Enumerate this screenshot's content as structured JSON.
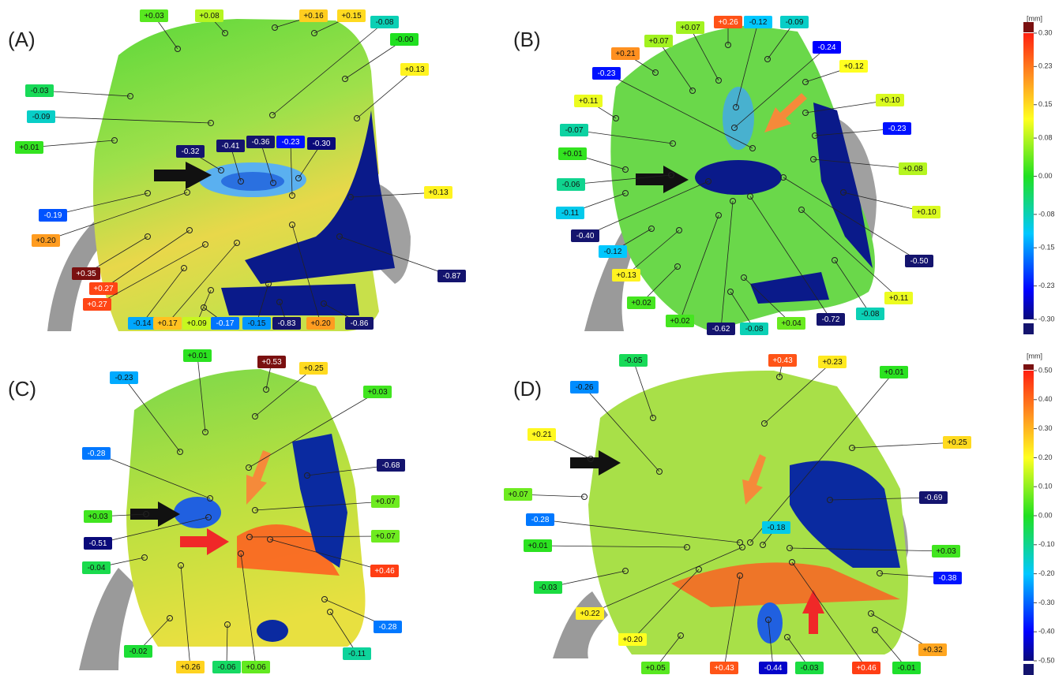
{
  "panels": [
    {
      "label": "(A)",
      "callouts": [
        "+0.03",
        "+0.08",
        "+0.16",
        "+0.15",
        "-0.08",
        "-0.00",
        "+0.13",
        "-0.03",
        "-0.09",
        "+0.01",
        "-0.32",
        "-0.41",
        "-0.36",
        "-0.23",
        "-0.30",
        "+0.13",
        "-0.19",
        "+0.20",
        "+0.35",
        "+0.27",
        "+0.27",
        "-0.14",
        "+0.17",
        "+0.09",
        "-0.17",
        "-0.15",
        "-0.83",
        "+0.20",
        "-0.86",
        "-0.87"
      ]
    },
    {
      "label": "(B)",
      "callouts": [
        "+0.21",
        "+0.07",
        "+0.07",
        "+0.26",
        "-0.12",
        "-0.09",
        "-0.24",
        "+0.12",
        "-0.23",
        "+0.11",
        "+0.10",
        "-0.07",
        "-0.23",
        "+0.01",
        "+0.08",
        "-0.06",
        "-0.11",
        "+0.10",
        "-0.40",
        "-0.12",
        "+0.13",
        "-0.50",
        "+0.02",
        "+0.11",
        "+0.02",
        "-0.62",
        "-0.08",
        "+0.04",
        "-0.72",
        "-0.08"
      ]
    },
    {
      "label": "(C)",
      "callouts": [
        "+0.01",
        "+0.53",
        "+0.25",
        "-0.23",
        "+0.03",
        "-0.28",
        "-0.68",
        "+0.07",
        "+0.03",
        "-0.51",
        "+0.07",
        "-0.04",
        "+0.46",
        "-0.28",
        "-0.02",
        "+0.26",
        "-0.06",
        "+0.06",
        "-0.11"
      ]
    },
    {
      "label": "(D)",
      "callouts": [
        "-0.05",
        "+0.43",
        "+0.23",
        "-0.26",
        "+0.01",
        "+0.21",
        "+0.25",
        "+0.07",
        "-0.69",
        "-0.18",
        "-0.28",
        "+0.01",
        "+0.03",
        "-0.03",
        "-0.38",
        "+0.22",
        "+0.20",
        "+0.32",
        "+0.05",
        "+0.43",
        "-0.44",
        "-0.03",
        "+0.46",
        "-0.01"
      ]
    }
  ],
  "colorbars": [
    {
      "unit": "[mm]",
      "ticks": [
        {
          "value": 0.3,
          "label": "0.30"
        },
        {
          "value": 0.23,
          "label": "0.23"
        },
        {
          "value": 0.15,
          "label": "0.15"
        },
        {
          "value": 0.08,
          "label": "0.08"
        },
        {
          "value": 0,
          "label": "0.00"
        },
        {
          "value": -0.08,
          "label": "-0.08"
        },
        {
          "value": -0.15,
          "label": "-0.15"
        },
        {
          "value": -0.23,
          "label": "-0.23"
        },
        {
          "value": -0.3,
          "label": "-0.30"
        }
      ]
    },
    {
      "unit": "[mm]",
      "ticks": [
        {
          "value": 0.5,
          "label": "0.50"
        },
        {
          "value": 0.4,
          "label": "0.40"
        },
        {
          "value": 0.3,
          "label": "0.30"
        },
        {
          "value": 0.2,
          "label": "0.20"
        },
        {
          "value": 0.1,
          "label": "0.10"
        },
        {
          "value": 0,
          "label": "0.00"
        },
        {
          "value": -0.1,
          "label": "-0.10"
        },
        {
          "value": -0.2,
          "label": "-0.20"
        },
        {
          "value": -0.3,
          "label": "-0.30"
        },
        {
          "value": -0.4,
          "label": "-0.40"
        },
        {
          "value": -0.5,
          "label": "-0.50"
        }
      ]
    }
  ]
}
